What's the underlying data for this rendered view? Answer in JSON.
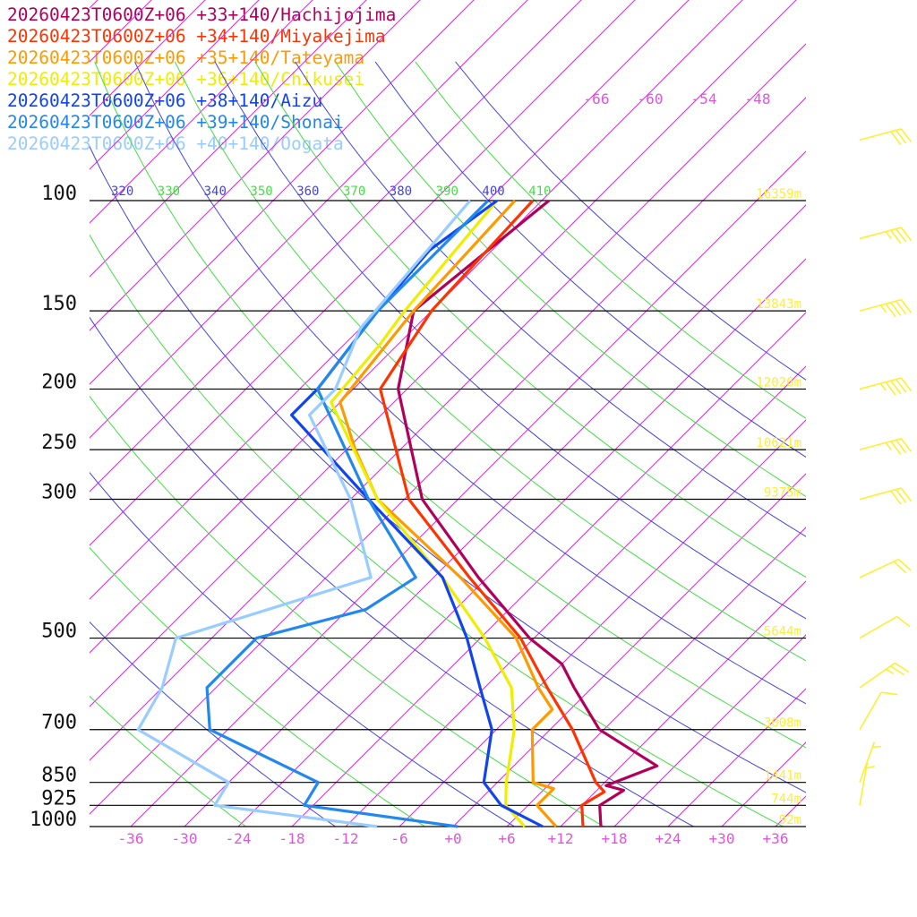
{
  "chart_data": {
    "type": "line",
    "chart_kind": "skew-T log-P sounding",
    "legend_position": "top-left",
    "pressure_levels": [
      100,
      150,
      200,
      250,
      300,
      500,
      700,
      850,
      925,
      1000
    ],
    "temperature_ticks": [
      "-36",
      "-30",
      "-24",
      "-18",
      "-12",
      "-6",
      "+0",
      "+6",
      "+12",
      "+18",
      "+24",
      "+30",
      "+36"
    ],
    "theta_labels": [
      {
        "text": "320",
        "color": "#4444dd"
      },
      {
        "text": "330",
        "color": "#44dd44"
      },
      {
        "text": "340",
        "color": "#4444dd"
      },
      {
        "text": "350",
        "color": "#44dd44"
      },
      {
        "text": "360",
        "color": "#4444dd"
      },
      {
        "text": "370",
        "color": "#44dd44"
      },
      {
        "text": "380",
        "color": "#4444dd"
      },
      {
        "text": "390",
        "color": "#44dd44"
      },
      {
        "text": "400",
        "color": "#4444dd"
      },
      {
        "text": "410",
        "color": "#44dd44"
      }
    ],
    "isotherm_top_labels": [
      "-66",
      "-60",
      "-54",
      "-48"
    ],
    "heights": [
      "16359m",
      "13843m",
      "12026m",
      "10621m",
      "9375m",
      "5644m",
      "3008m",
      "1441m",
      "744m",
      "92m"
    ],
    "series": [
      {
        "name": "20260423T0600Z+06 +33+140/Hachijojima",
        "color": "#b0005a",
        "points": [
          [
            100,
            -59.2
          ],
          [
            150,
            -62
          ],
          [
            200,
            -55
          ],
          [
            300,
            -40
          ],
          [
            400,
            -25
          ],
          [
            500,
            -12.5
          ],
          [
            550,
            -6
          ],
          [
            600,
            -2
          ],
          [
            700,
            5.5
          ],
          [
            800,
            16
          ],
          [
            860,
            12.5
          ],
          [
            875,
            15
          ],
          [
            925,
            14
          ],
          [
            1000,
            16.5
          ]
        ]
      },
      {
        "name": "20260423T0600Z+06 +34+140/Miyakejima",
        "color": "#ff3300",
        "points": [
          [
            100,
            -61
          ],
          [
            150,
            -60
          ],
          [
            200,
            -57
          ],
          [
            300,
            -41.5
          ],
          [
            400,
            -26
          ],
          [
            500,
            -13.5
          ],
          [
            600,
            -5
          ],
          [
            700,
            2.5
          ],
          [
            850,
            11
          ],
          [
            880,
            13
          ],
          [
            925,
            12
          ],
          [
            1000,
            14.5
          ]
        ]
      },
      {
        "name": "20260423T0600Z+06 +35+140/Tateyama",
        "color": "#ff9900",
        "points": [
          [
            100,
            -63
          ],
          [
            150,
            -62
          ],
          [
            210,
            -60
          ],
          [
            250,
            -53
          ],
          [
            300,
            -45
          ],
          [
            400,
            -27
          ],
          [
            500,
            -14
          ],
          [
            600,
            -6
          ],
          [
            650,
            -2
          ],
          [
            700,
            -2
          ],
          [
            850,
            4
          ],
          [
            870,
            7
          ],
          [
            925,
            7
          ],
          [
            1000,
            11.5
          ]
        ]
      },
      {
        "name": "20260423T0600Z+06 +36+140/Chikusei",
        "color": "#eeee00",
        "points": [
          [
            100,
            -65
          ],
          [
            150,
            -63
          ],
          [
            170,
            -62
          ],
          [
            210,
            -61
          ],
          [
            300,
            -45
          ],
          [
            400,
            -29
          ],
          [
            500,
            -17.5
          ],
          [
            600,
            -9
          ],
          [
            700,
            -4
          ],
          [
            850,
            1
          ],
          [
            925,
            3.5
          ],
          [
            1000,
            8
          ]
        ]
      },
      {
        "name": "20260423T0600Z+06 +38+140/Aizu",
        "color": "#1144ee",
        "points": [
          [
            100,
            -65
          ],
          [
            120,
            -67
          ],
          [
            150,
            -66
          ],
          [
            200,
            -64
          ],
          [
            220,
            -64
          ],
          [
            300,
            -46
          ],
          [
            400,
            -29
          ],
          [
            500,
            -19.5
          ],
          [
            600,
            -12.5
          ],
          [
            700,
            -6.5
          ],
          [
            850,
            -1.5
          ],
          [
            925,
            3
          ],
          [
            1000,
            10
          ]
        ]
      },
      {
        "name": "20260423T0600Z+06 +39+140/Shonai",
        "color": "#2288ee",
        "points": [
          [
            100,
            -66
          ],
          [
            150,
            -66
          ],
          [
            200,
            -64
          ],
          [
            300,
            -46
          ],
          [
            400,
            -32
          ],
          [
            450,
            -34
          ],
          [
            500,
            -43
          ],
          [
            600,
            -43
          ],
          [
            700,
            -38
          ],
          [
            850,
            -20
          ],
          [
            925,
            -19
          ],
          [
            1000,
            0.5
          ]
        ]
      },
      {
        "name": "20260423T0600Z+06 +40+140/Oogata",
        "color": "#99ccff",
        "points": [
          [
            100,
            -68
          ],
          [
            160,
            -66
          ],
          [
            200,
            -62
          ],
          [
            220,
            -62
          ],
          [
            300,
            -48
          ],
          [
            400,
            -37
          ],
          [
            500,
            -52
          ],
          [
            600,
            -48
          ],
          [
            700,
            -46
          ],
          [
            850,
            -30
          ],
          [
            925,
            -29
          ],
          [
            1000,
            -8.5
          ]
        ]
      }
    ],
    "wind_barbs": [
      {
        "p": 80,
        "dir": 255,
        "kt": 30
      },
      {
        "p": 115,
        "dir": 255,
        "kt": 35
      },
      {
        "p": 150,
        "dir": 255,
        "kt": 45
      },
      {
        "p": 200,
        "dir": 255,
        "kt": 45
      },
      {
        "p": 250,
        "dir": 255,
        "kt": 35
      },
      {
        "p": 300,
        "dir": 255,
        "kt": 30
      },
      {
        "p": 400,
        "dir": 245,
        "kt": 20
      },
      {
        "p": 500,
        "dir": 240,
        "kt": 10
      },
      {
        "p": 600,
        "dir": 235,
        "kt": 25
      },
      {
        "p": 700,
        "dir": 210,
        "kt": 10
      },
      {
        "p": 850,
        "dir": 200,
        "kt": 5
      },
      {
        "p": 925,
        "dir": 190,
        "kt": 5
      }
    ]
  }
}
